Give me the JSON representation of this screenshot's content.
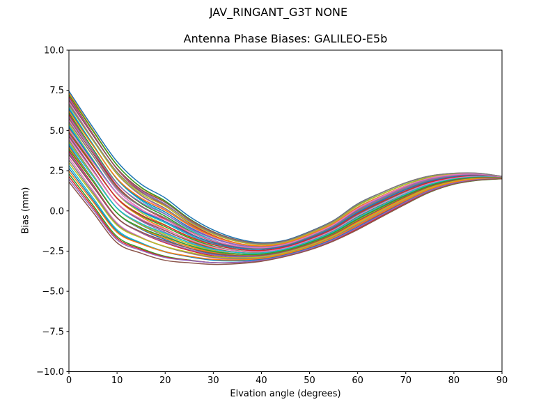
{
  "chart_data": {
    "type": "line",
    "title": "JAV_RINGANT_G3T NONE",
    "subtitle": "Antenna Phase Biases: GALILEO-E5b",
    "xlabel": "Elvation angle (degrees)",
    "ylabel": "Bias (mm)",
    "xlim": [
      0,
      90
    ],
    "ylim": [
      -10.0,
      10.0
    ],
    "grid": false,
    "legend": "none",
    "x_ticks": {
      "values": [
        0,
        10,
        20,
        30,
        40,
        50,
        60,
        70,
        80,
        90
      ],
      "labels": [
        "0",
        "10",
        "20",
        "30",
        "40",
        "50",
        "60",
        "70",
        "80",
        "90"
      ]
    },
    "y_ticks": {
      "values": [
        10.0,
        7.5,
        5.0,
        2.5,
        0.0,
        -2.5,
        -5.0,
        -7.5,
        -10.0
      ],
      "labels": [
        "10.0",
        "7.5",
        "5.0",
        "2.5",
        "0.0",
        "−2.5",
        "−5.0",
        "−7.5",
        "−10.0"
      ]
    },
    "x": [
      0,
      5,
      10,
      15,
      20,
      25,
      30,
      35,
      40,
      45,
      50,
      55,
      60,
      65,
      70,
      75,
      80,
      85,
      90
    ],
    "band_top": [
      7.45,
      5.2,
      3.1,
      1.7,
      0.85,
      -0.3,
      -1.15,
      -1.7,
      -1.95,
      -1.8,
      -1.25,
      -0.55,
      0.5,
      1.2,
      1.8,
      2.2,
      2.35,
      2.35,
      2.15
    ],
    "band_bottom": [
      1.8,
      -0.1,
      -2.0,
      -2.65,
      -3.1,
      -3.25,
      -3.35,
      -3.3,
      -3.15,
      -2.85,
      -2.45,
      -1.9,
      -1.2,
      -0.4,
      0.4,
      1.15,
      1.65,
      1.9,
      2.0
    ],
    "series_note": "~48 unlabeled calibration curves; each series interpolates between band_bottom and band_top with fraction t0 at 0 deg drifting to t1 at 90 deg; all converge to ~2.1 mm at 90 deg, minimum ~-3.3 mm near 30-35 deg",
    "series_format": [
      "t0",
      "t1"
    ],
    "series": [
      [
        1.0,
        0.95
      ],
      [
        0.98,
        0.75
      ],
      [
        0.96,
        0.88
      ],
      [
        0.94,
        0.6
      ],
      [
        0.92,
        0.8
      ],
      [
        0.9,
        0.99
      ],
      [
        0.88,
        0.55
      ],
      [
        0.86,
        0.7
      ],
      [
        0.84,
        0.92
      ],
      [
        0.82,
        0.45
      ],
      [
        0.8,
        0.65
      ],
      [
        0.78,
        0.85
      ],
      [
        0.76,
        0.5
      ],
      [
        0.74,
        0.35
      ],
      [
        0.72,
        0.78
      ],
      [
        0.7,
        0.58
      ],
      [
        0.68,
        0.4
      ],
      [
        0.66,
        0.72
      ],
      [
        0.64,
        0.3
      ],
      [
        0.62,
        0.52
      ],
      [
        0.6,
        0.68
      ],
      [
        0.58,
        0.25
      ],
      [
        0.56,
        0.45
      ],
      [
        0.54,
        0.62
      ],
      [
        0.52,
        0.2
      ],
      [
        0.5,
        0.38
      ],
      [
        0.48,
        0.55
      ],
      [
        0.46,
        0.15
      ],
      [
        0.44,
        0.32
      ],
      [
        0.42,
        0.48
      ],
      [
        0.4,
        0.1
      ],
      [
        0.38,
        0.26
      ],
      [
        0.36,
        0.42
      ],
      [
        0.34,
        0.08
      ],
      [
        0.32,
        0.2
      ],
      [
        0.3,
        0.36
      ],
      [
        0.27,
        0.05
      ],
      [
        0.24,
        0.15
      ],
      [
        0.21,
        0.28
      ],
      [
        0.18,
        0.02
      ],
      [
        0.15,
        0.1
      ],
      [
        0.12,
        0.22
      ],
      [
        0.09,
        0.0
      ],
      [
        0.06,
        0.06
      ],
      [
        0.03,
        0.12
      ],
      [
        0.0,
        0.03
      ],
      [
        0.57,
        0.9
      ],
      [
        0.85,
        1.0
      ]
    ],
    "series_colors": [
      "#1f77b4",
      "#ff7f0e",
      "#2ca02c",
      "#d62728",
      "#9467bd",
      "#8c564b",
      "#e377c2",
      "#7f7f7f",
      "#bcbd22",
      "#17becf"
    ],
    "axis_color": "#000000",
    "background_color": "#ffffff"
  }
}
